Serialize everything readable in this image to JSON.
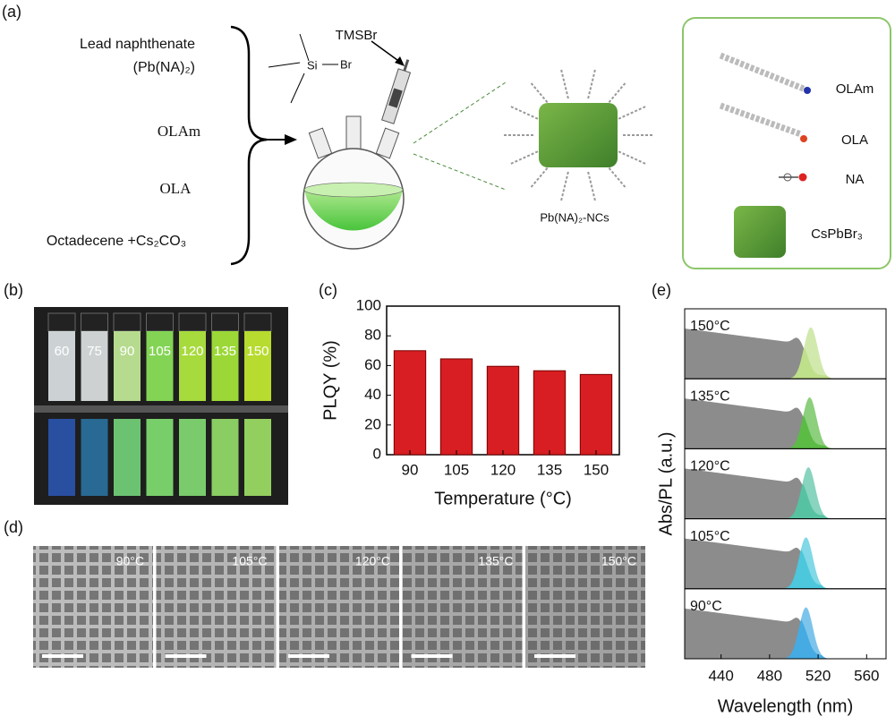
{
  "panel_labels": [
    "(a)",
    "(b)",
    "(c)",
    "(d)",
    "(e)"
  ],
  "scheme": {
    "reagents": [
      "Lead naphthenate",
      "(Pb(NA)₂)",
      "OLAm",
      "OLA",
      "Octadecene +Cs₂CO₃"
    ],
    "additive": "TMSBr",
    "si": "Si",
    "br": "Br",
    "product": "Pb(NA)₂-NCs",
    "legend": [
      "OLAm",
      "OLA",
      "NA",
      "CsPbBr₃"
    ]
  },
  "vials": [
    "60",
    "75",
    "90",
    "105",
    "120",
    "135",
    "150"
  ],
  "tem": [
    "90°C",
    "105°C",
    "120°C",
    "135°C",
    "150°C"
  ],
  "chart_data": [
    {
      "type": "bar",
      "xlabel": "Temperature (°C)",
      "ylabel": "PLQY (%)",
      "categories": [
        "90",
        "105",
        "120",
        "135",
        "150"
      ],
      "values": [
        70,
        64.5,
        59.5,
        56.5,
        54
      ],
      "color": "#d81e22",
      "ylim": [
        0,
        100
      ],
      "yticks": [
        0,
        20,
        40,
        60,
        80,
        100
      ]
    },
    {
      "type": "spectra",
      "xlabel": "Wavelength (nm)",
      "ylabel": "Abs/PL (a.u.)",
      "xlim": [
        410,
        576
      ],
      "xticks": [
        440,
        480,
        520,
        560
      ],
      "panels": [
        "150°C",
        "135°C",
        "120°C",
        "105°C",
        "90°C"
      ],
      "colors": [
        "#bfe08a",
        "#5bbb45",
        "#56c2a2",
        "#4cc7dc",
        "#45abe2"
      ]
    }
  ]
}
